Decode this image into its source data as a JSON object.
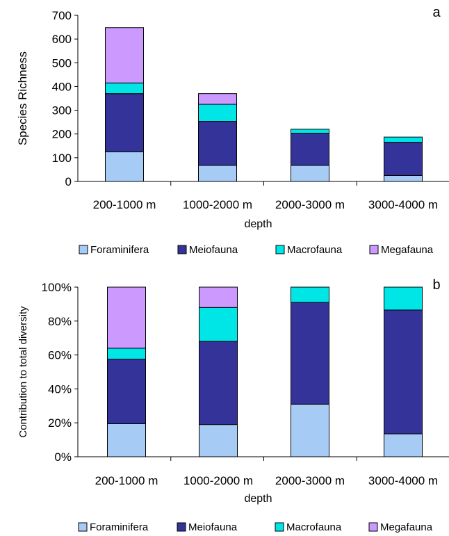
{
  "legend": {
    "items": [
      "Foraminifera",
      "Meiofauna",
      "Macrofauna",
      "Megafauna"
    ]
  },
  "colors": {
    "Foraminifera": "#a6cbf5",
    "Meiofauna": "#333399",
    "Macrofauna": "#00e6e6",
    "Megafauna": "#cc99ff"
  },
  "chart_data": [
    {
      "type": "bar",
      "stacked": true,
      "panel_label": "a",
      "categories": [
        "200-1000 m",
        "1000-2000 m",
        "2000-3000 m",
        "3000-4000 m"
      ],
      "series": [
        {
          "name": "Foraminifera",
          "values": [
            125,
            68,
            68,
            25
          ]
        },
        {
          "name": "Meiofauna",
          "values": [
            245,
            185,
            135,
            140
          ]
        },
        {
          "name": "Macrofauna",
          "values": [
            45,
            72,
            17,
            22
          ]
        },
        {
          "name": "Megafauna",
          "values": [
            233,
            45,
            0,
            0
          ]
        }
      ],
      "xlabel": "depth",
      "ylabel": "Species Richness",
      "ylim": [
        0,
        700
      ],
      "yticks": [
        "0",
        "100",
        "200",
        "300",
        "400",
        "500",
        "600",
        "700"
      ],
      "legend_position": "bottom"
    },
    {
      "type": "bar",
      "stacked": true,
      "panel_label": "b",
      "categories": [
        "200-1000 m",
        "1000-2000 m",
        "2000-3000 m",
        "3000-4000 m"
      ],
      "series": [
        {
          "name": "Foraminifera",
          "values": [
            19.5,
            19,
            31,
            13.5
          ]
        },
        {
          "name": "Meiofauna",
          "values": [
            38,
            49,
            60,
            73
          ]
        },
        {
          "name": "Macrofauna",
          "values": [
            6.5,
            20,
            9,
            13.5
          ]
        },
        {
          "name": "Megafauna",
          "values": [
            36,
            12,
            0,
            0
          ]
        }
      ],
      "xlabel": "depth",
      "ylabel": "Contribution to total diversity",
      "ylim": [
        0,
        100
      ],
      "yticks": [
        "0%",
        "20%",
        "40%",
        "60%",
        "80%",
        "100%"
      ],
      "legend_position": "bottom"
    }
  ]
}
